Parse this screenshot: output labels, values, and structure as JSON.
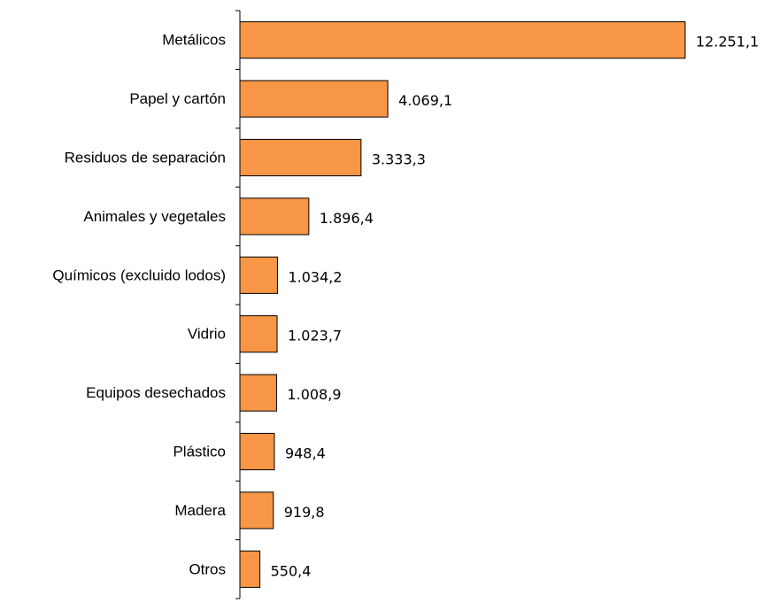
{
  "chart_data": {
    "type": "bar",
    "orientation": "horizontal",
    "title": "",
    "xlabel": "",
    "ylabel": "",
    "grid": false,
    "legend": "none",
    "bar_color": "#F79646",
    "xlim": [
      0,
      12251.1
    ],
    "categories": [
      "Metálicos",
      "Papel y cartón",
      "Residuos de separación",
      "Animales y vegetales",
      "Químicos (excluido lodos)",
      "Vidrio",
      "Equipos desechados",
      "Plástico",
      "Madera",
      "Otros"
    ],
    "values": [
      12251.1,
      4069.1,
      3333.3,
      1896.4,
      1034.2,
      1023.7,
      1008.9,
      948.4,
      919.8,
      550.4
    ],
    "value_labels": [
      "12.251,1",
      "4.069,1",
      "3.333,3",
      "1.896,4",
      "1.034,2",
      "1.023,7",
      "1.008,9",
      "948,4",
      "919,8",
      "550,4"
    ]
  }
}
